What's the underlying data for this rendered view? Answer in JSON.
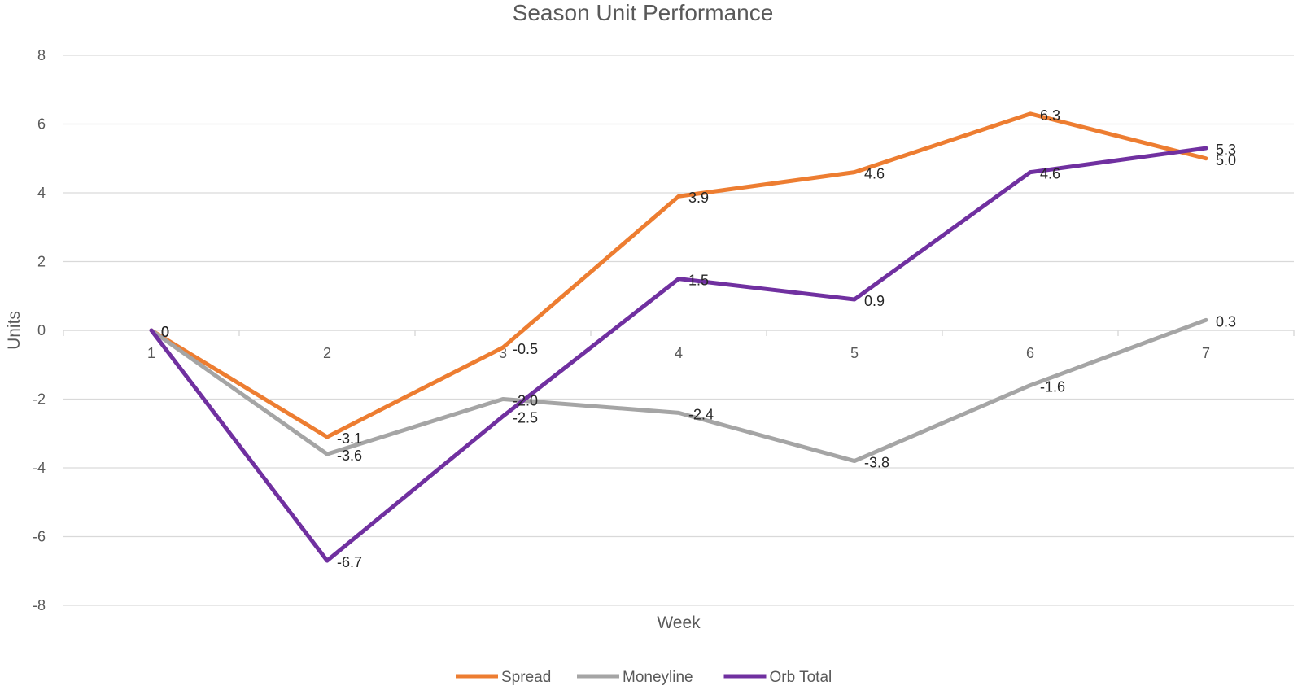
{
  "chart_data": {
    "type": "line",
    "title": "Season Unit Performance",
    "xlabel": "Week",
    "ylabel": "Units",
    "categories": [
      "1",
      "2",
      "3",
      "4",
      "5",
      "6",
      "7"
    ],
    "y_ticks": [
      "-8",
      "-6",
      "-4",
      "-2",
      "0",
      "2",
      "4",
      "6",
      "8"
    ],
    "ylim": [
      -8,
      8
    ],
    "grid": true,
    "legend_position": "bottom",
    "series": [
      {
        "name": "Spread",
        "color": "#ed7d31",
        "values": [
          0,
          -3.1,
          -0.5,
          3.9,
          4.6,
          6.3,
          5.0
        ],
        "labels": [
          "0",
          "-3.1",
          "-0.5",
          "3.9",
          "4.6",
          "6.3",
          "5.0"
        ]
      },
      {
        "name": "Moneyline",
        "color": "#a5a5a5",
        "values": [
          0,
          -3.6,
          -2.0,
          -2.4,
          -3.8,
          -1.6,
          0.3
        ],
        "labels": [
          "0",
          "-3.6",
          "-2.0",
          "-2.4",
          "-3.8",
          "-1.6",
          "0.3"
        ]
      },
      {
        "name": "Orb Total",
        "color": "#7030a0",
        "values": [
          0,
          -6.7,
          -2.5,
          1.5,
          0.9,
          4.6,
          5.3
        ],
        "labels": [
          "0",
          "-6.7",
          "-2.5",
          "1.5",
          "0.9",
          "4.6",
          "5.3"
        ]
      }
    ]
  }
}
